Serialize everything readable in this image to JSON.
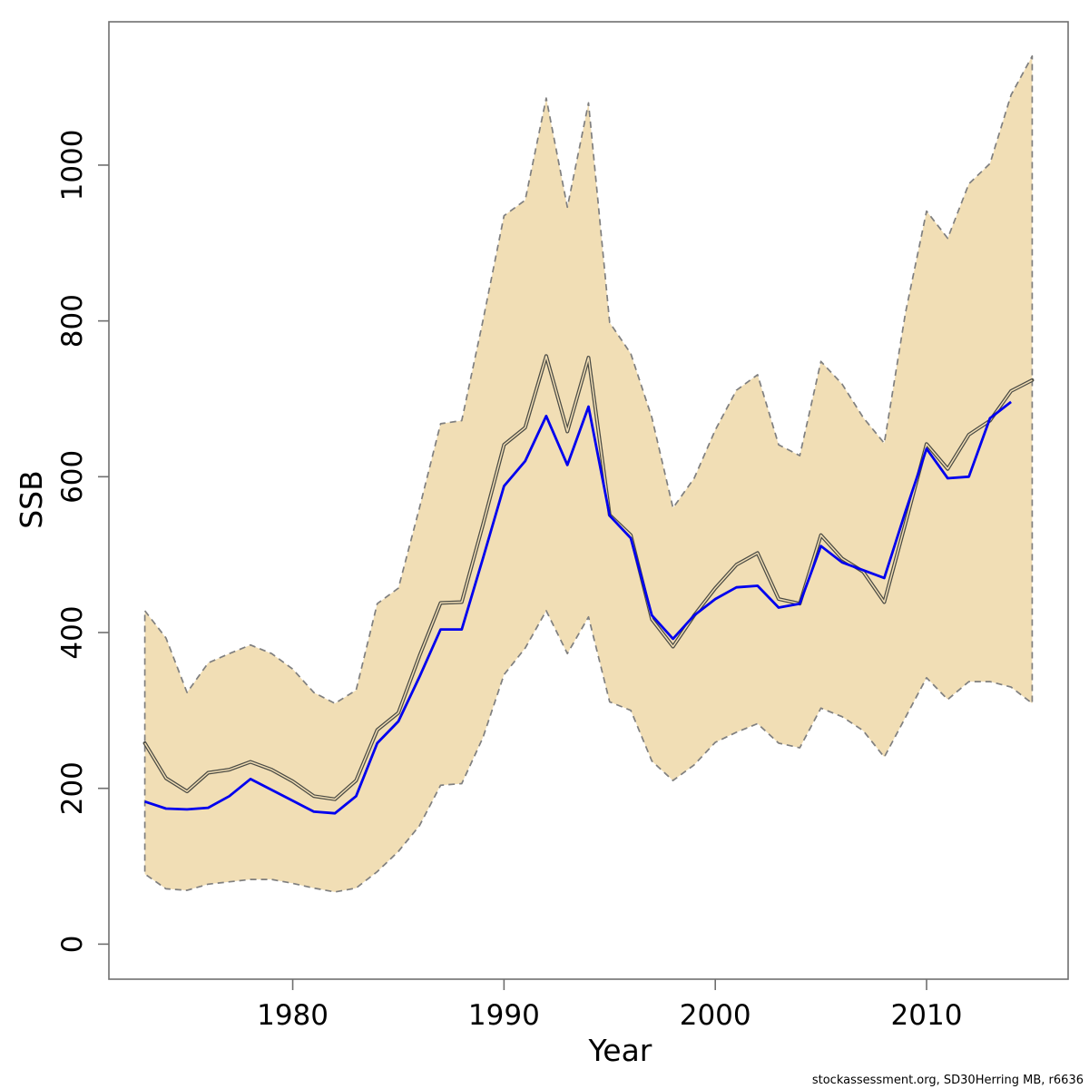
{
  "chart_data": {
    "type": "line",
    "title": "",
    "xlabel": "Year",
    "ylabel": "SSB",
    "legend": "none",
    "grid": false,
    "x_ticks": [
      1980,
      1990,
      2000,
      2010
    ],
    "y_ticks": [
      0,
      200,
      400,
      600,
      800,
      1000
    ],
    "xlim": [
      1971.3,
      2016.7
    ],
    "ylim": [
      -45,
      1184
    ],
    "years": [
      1973,
      1974,
      1975,
      1976,
      1977,
      1978,
      1979,
      1980,
      1981,
      1982,
      1983,
      1984,
      1985,
      1986,
      1987,
      1988,
      1989,
      1990,
      1991,
      1992,
      1993,
      1994,
      1995,
      1996,
      1997,
      1998,
      1999,
      2000,
      2001,
      2002,
      2003,
      2004,
      2005,
      2006,
      2007,
      2008,
      2009,
      2010,
      2011,
      2012,
      2013,
      2014,
      2015
    ],
    "series": [
      {
        "name": "ssb-estimate-gray",
        "color": "#4b4b44",
        "style": "solid-hollow",
        "values": [
          258,
          213,
          196,
          220,
          224,
          234,
          224,
          209,
          190,
          186,
          210,
          275,
          297,
          370,
          438,
          439,
          538,
          641,
          663,
          755,
          658,
          753,
          551,
          525,
          417,
          382,
          422,
          457,
          487,
          502,
          443,
          437,
          525,
          495,
          478,
          439,
          540,
          642,
          610,
          654,
          672,
          710,
          724
        ]
      },
      {
        "name": "ssb-alternative-blue",
        "color": "#0000ee",
        "style": "solid",
        "values": [
          183,
          174,
          173,
          175,
          190,
          212,
          198,
          184,
          170,
          168,
          190,
          258,
          286,
          343,
          404,
          404,
          495,
          588,
          620,
          678,
          615,
          690,
          550,
          521,
          422,
          392,
          422,
          443,
          458,
          460,
          432,
          437,
          511,
          490,
          480,
          470,
          555,
          636,
          598,
          600,
          675,
          696
        ]
      }
    ],
    "band": {
      "name": "confidence-interval",
      "fill": "#f1deb5",
      "border_color": "#7f7f7f",
      "border_style": "dashed",
      "upper": [
        428,
        393,
        323,
        361,
        373,
        384,
        373,
        353,
        323,
        309,
        326,
        437,
        457,
        560,
        668,
        672,
        800,
        935,
        955,
        1086,
        946,
        1080,
        798,
        758,
        676,
        560,
        598,
        660,
        711,
        731,
        641,
        627,
        748,
        719,
        676,
        643,
        810,
        941,
        906,
        976,
        1002,
        1090,
        1140
      ],
      "lower": [
        90,
        71,
        69,
        77,
        80,
        83,
        83,
        78,
        72,
        67,
        72,
        93,
        119,
        152,
        204,
        206,
        265,
        346,
        380,
        428,
        373,
        420,
        311,
        300,
        235,
        210,
        230,
        259,
        272,
        283,
        258,
        252,
        303,
        292,
        274,
        240,
        291,
        342,
        314,
        337,
        337,
        330,
        309
      ]
    },
    "axis_color": "#6f6f6f",
    "tick_label_color": "#000000"
  },
  "footer": {
    "credit": "stockassessment.org, SD30Herring  MB, r6636"
  }
}
